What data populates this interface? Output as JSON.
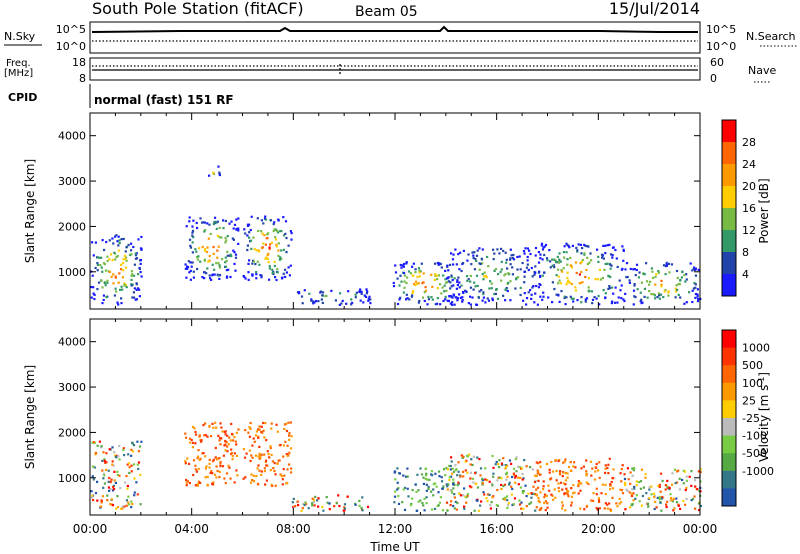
{
  "header": {
    "station": "South Pole Station (fitACF)",
    "beam": "Beam 05",
    "date": "15/Jul/2014"
  },
  "top_panels": {
    "nsky_label": "N.Sky",
    "nsearch_label": "N.Search",
    "nsky_ticks": [
      "10^5",
      "10^0"
    ],
    "nsearch_ticks": [
      "10^5",
      "10^0"
    ],
    "freq_label": "Freq.",
    "freq_unit": "[MHz]",
    "freq_ticks": [
      "18",
      "8"
    ],
    "nave_label": "Nave",
    "nave_ticks": [
      "60",
      "0"
    ],
    "cpid_label": "CPID",
    "cpid_value": "normal (fast) 151 RF"
  },
  "colors": {
    "power": [
      "#1a1aff",
      "#2244aa",
      "#339966",
      "#77bb44",
      "#ffcc00",
      "#ff9900",
      "#ff6600",
      "#ff0000"
    ],
    "velocity": [
      "#2255aa",
      "#337788",
      "#55aa44",
      "#77cc44",
      "#bbbbbb",
      "#ffcc00",
      "#ff9900",
      "#ff6600",
      "#ff3300",
      "#ff0000"
    ]
  },
  "chart_data": [
    {
      "type": "heatmap",
      "name": "power",
      "ylabel": "Slant Range [km]",
      "ylim": [
        180,
        4500
      ],
      "y_ticks": [
        1000,
        2000,
        3000,
        4000
      ],
      "x_ticks": [
        "00:00",
        "04:00",
        "08:00",
        "12:00",
        "16:00",
        "20:00",
        "00:00"
      ],
      "colorbar_label": "Power [dB]",
      "colorbar_ticks": [
        "28",
        "24",
        "20",
        "16",
        "12",
        "8",
        "4"
      ],
      "regions": [
        {
          "t0": 0.0,
          "t1": 2.0,
          "r0": 250,
          "r1": 1800,
          "peak": 0.9
        },
        {
          "t0": 3.7,
          "t1": 5.8,
          "r0": 800,
          "r1": 2200,
          "peak": 0.95
        },
        {
          "t0": 6.0,
          "t1": 7.9,
          "r0": 800,
          "r1": 2200,
          "peak": 1.0
        },
        {
          "t0": 7.9,
          "t1": 11.0,
          "r0": 250,
          "r1": 600,
          "peak": 0.35
        },
        {
          "t0": 11.9,
          "t1": 14.5,
          "r0": 250,
          "r1": 1200,
          "peak": 1.0
        },
        {
          "t0": 14.0,
          "t1": 17.5,
          "r0": 250,
          "r1": 1500,
          "peak": 0.55
        },
        {
          "t0": 17.5,
          "t1": 21.0,
          "r0": 250,
          "r1": 1600,
          "peak": 0.9
        },
        {
          "t0": 21.0,
          "t1": 24.0,
          "r0": 250,
          "r1": 1200,
          "peak": 0.8
        },
        {
          "t0": 4.6,
          "t1": 5.1,
          "r0": 3050,
          "r1": 3300,
          "peak": 0.5
        }
      ]
    },
    {
      "type": "heatmap",
      "name": "velocity",
      "ylabel": "Slant Range [km]",
      "ylim": [
        180,
        4500
      ],
      "y_ticks": [
        1000,
        2000,
        3000,
        4000
      ],
      "xlabel": "Time UT",
      "x_ticks": [
        "00:00",
        "04:00",
        "08:00",
        "12:00",
        "16:00",
        "20:00",
        "00:00"
      ],
      "colorbar_label": "Velocity [m s",
      "colorbar_label_sup": "-1",
      "colorbar_label_tail": "]",
      "colorbar_ticks": [
        "1000",
        "500",
        "100",
        "25",
        "-25",
        "-100",
        "-500",
        "-1000"
      ],
      "regions": [
        {
          "t0": 0.0,
          "t1": 2.0,
          "r0": 250,
          "r1": 1800,
          "v": "mixed"
        },
        {
          "t0": 3.7,
          "t1": 5.8,
          "r0": 800,
          "r1": 2200,
          "v": "neg"
        },
        {
          "t0": 6.0,
          "t1": 7.9,
          "r0": 800,
          "r1": 2200,
          "v": "neg"
        },
        {
          "t0": 7.9,
          "t1": 11.0,
          "r0": 250,
          "r1": 600,
          "v": "mixed"
        },
        {
          "t0": 11.9,
          "t1": 14.5,
          "r0": 250,
          "r1": 1200,
          "v": "pos"
        },
        {
          "t0": 14.0,
          "t1": 17.5,
          "r0": 250,
          "r1": 1500,
          "v": "mixed"
        },
        {
          "t0": 17.5,
          "t1": 21.0,
          "r0": 250,
          "r1": 1400,
          "v": "neg"
        },
        {
          "t0": 21.0,
          "t1": 24.0,
          "r0": 250,
          "r1": 1200,
          "v": "mixed"
        }
      ]
    }
  ]
}
